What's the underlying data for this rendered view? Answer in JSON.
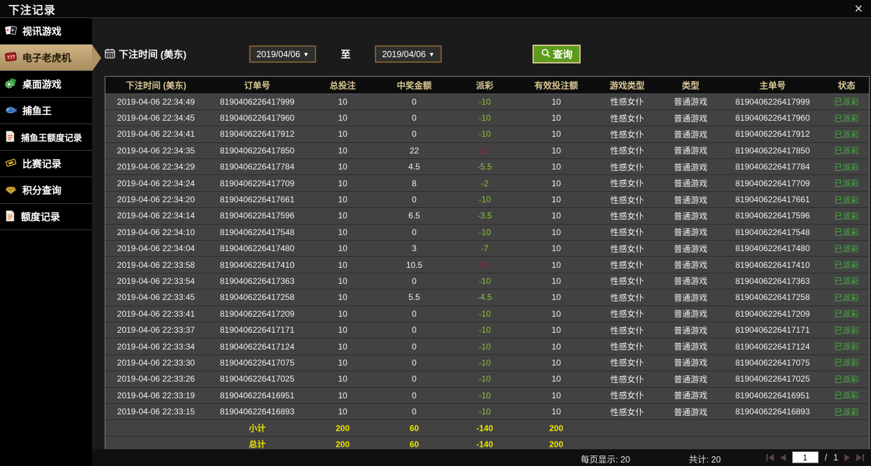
{
  "window": {
    "title": "下注记录",
    "close_icon": "×"
  },
  "colors": {
    "accent_tan": "#b09364",
    "query_green": "#5d9b1d",
    "payout_negative": "#8bc43c",
    "payout_positive": "#8c2a38",
    "status_green": "#41b53a",
    "summary_yellow": "#e8e400",
    "header_text": "#d8c695"
  },
  "sidebar": {
    "items": [
      {
        "label": "视讯游戏",
        "icon": "playing-cards-icon",
        "active": false
      },
      {
        "label": "电子老虎机",
        "icon": "slot-777-icon",
        "active": true
      },
      {
        "label": "桌面游戏",
        "icon": "table-games-icon",
        "active": false
      },
      {
        "label": "捕鱼王",
        "icon": "fish-icon",
        "active": false
      },
      {
        "label": "捕鱼王额度记录",
        "icon": "document-icon",
        "active": false
      },
      {
        "label": "比赛记录",
        "icon": "ticket-icon",
        "active": false
      },
      {
        "label": "积分查询",
        "icon": "diamond-icon",
        "active": false
      },
      {
        "label": "额度记录",
        "icon": "document-icon",
        "active": false
      }
    ]
  },
  "filter": {
    "label": "下注时间 (美东)",
    "date_from": "2019/04/06",
    "date_to": "2019/04/06",
    "caret": "▼",
    "to_label": "至",
    "query_label": "查询"
  },
  "table": {
    "headers": [
      "下注时间 (美东)",
      "订单号",
      "总投注",
      "中奖金额",
      "派彩",
      "有效投注额",
      "游戏类型",
      "类型",
      "主单号",
      "状态"
    ],
    "rows": [
      [
        "2019-04-06 22:34:49",
        "8190406226417999",
        "10",
        "0",
        "-10",
        "10",
        "性感女仆",
        "普通游戏",
        "8190406226417999",
        "已派彩"
      ],
      [
        "2019-04-06 22:34:45",
        "8190406226417960",
        "10",
        "0",
        "-10",
        "10",
        "性感女仆",
        "普通游戏",
        "8190406226417960",
        "已派彩"
      ],
      [
        "2019-04-06 22:34:41",
        "8190406226417912",
        "10",
        "0",
        "-10",
        "10",
        "性感女仆",
        "普通游戏",
        "8190406226417912",
        "已派彩"
      ],
      [
        "2019-04-06 22:34:35",
        "8190406226417850",
        "10",
        "22",
        "12",
        "10",
        "性感女仆",
        "普通游戏",
        "8190406226417850",
        "已派彩"
      ],
      [
        "2019-04-06 22:34:29",
        "8190406226417784",
        "10",
        "4.5",
        "-5.5",
        "10",
        "性感女仆",
        "普通游戏",
        "8190406226417784",
        "已派彩"
      ],
      [
        "2019-04-06 22:34:24",
        "8190406226417709",
        "10",
        "8",
        "-2",
        "10",
        "性感女仆",
        "普通游戏",
        "8190406226417709",
        "已派彩"
      ],
      [
        "2019-04-06 22:34:20",
        "8190406226417661",
        "10",
        "0",
        "-10",
        "10",
        "性感女仆",
        "普通游戏",
        "8190406226417661",
        "已派彩"
      ],
      [
        "2019-04-06 22:34:14",
        "8190406226417596",
        "10",
        "6.5",
        "-3.5",
        "10",
        "性感女仆",
        "普通游戏",
        "8190406226417596",
        "已派彩"
      ],
      [
        "2019-04-06 22:34:10",
        "8190406226417548",
        "10",
        "0",
        "-10",
        "10",
        "性感女仆",
        "普通游戏",
        "8190406226417548",
        "已派彩"
      ],
      [
        "2019-04-06 22:34:04",
        "8190406226417480",
        "10",
        "3",
        "-7",
        "10",
        "性感女仆",
        "普通游戏",
        "8190406226417480",
        "已派彩"
      ],
      [
        "2019-04-06 22:33:58",
        "8190406226417410",
        "10",
        "10.5",
        "0.5",
        "10",
        "性感女仆",
        "普通游戏",
        "8190406226417410",
        "已派彩"
      ],
      [
        "2019-04-06 22:33:54",
        "8190406226417363",
        "10",
        "0",
        "-10",
        "10",
        "性感女仆",
        "普通游戏",
        "8190406226417363",
        "已派彩"
      ],
      [
        "2019-04-06 22:33:45",
        "8190406226417258",
        "10",
        "5.5",
        "-4.5",
        "10",
        "性感女仆",
        "普通游戏",
        "8190406226417258",
        "已派彩"
      ],
      [
        "2019-04-06 22:33:41",
        "8190406226417209",
        "10",
        "0",
        "-10",
        "10",
        "性感女仆",
        "普通游戏",
        "8190406226417209",
        "已派彩"
      ],
      [
        "2019-04-06 22:33:37",
        "8190406226417171",
        "10",
        "0",
        "-10",
        "10",
        "性感女仆",
        "普通游戏",
        "8190406226417171",
        "已派彩"
      ],
      [
        "2019-04-06 22:33:34",
        "8190406226417124",
        "10",
        "0",
        "-10",
        "10",
        "性感女仆",
        "普通游戏",
        "8190406226417124",
        "已派彩"
      ],
      [
        "2019-04-06 22:33:30",
        "8190406226417075",
        "10",
        "0",
        "-10",
        "10",
        "性感女仆",
        "普通游戏",
        "8190406226417075",
        "已派彩"
      ],
      [
        "2019-04-06 22:33:26",
        "8190406226417025",
        "10",
        "0",
        "-10",
        "10",
        "性感女仆",
        "普通游戏",
        "8190406226417025",
        "已派彩"
      ],
      [
        "2019-04-06 22:33:19",
        "8190406226416951",
        "10",
        "0",
        "-10",
        "10",
        "性感女仆",
        "普通游戏",
        "8190406226416951",
        "已派彩"
      ],
      [
        "2019-04-06 22:33:15",
        "8190406226416893",
        "10",
        "0",
        "-10",
        "10",
        "性感女仆",
        "普通游戏",
        "8190406226416893",
        "已派彩"
      ]
    ],
    "summary_rows": [
      [
        "",
        "小计",
        "200",
        "60",
        "-140",
        "200",
        "",
        "",
        "",
        ""
      ],
      [
        "",
        "总计",
        "200",
        "60",
        "-140",
        "200",
        "",
        "",
        "",
        ""
      ]
    ]
  },
  "footer": {
    "per_page_label": "每页显示:",
    "per_page_value": "20",
    "total_label": "共计:",
    "total_value": "20",
    "page_input": "1",
    "page_separator": "/",
    "page_count": "1"
  }
}
